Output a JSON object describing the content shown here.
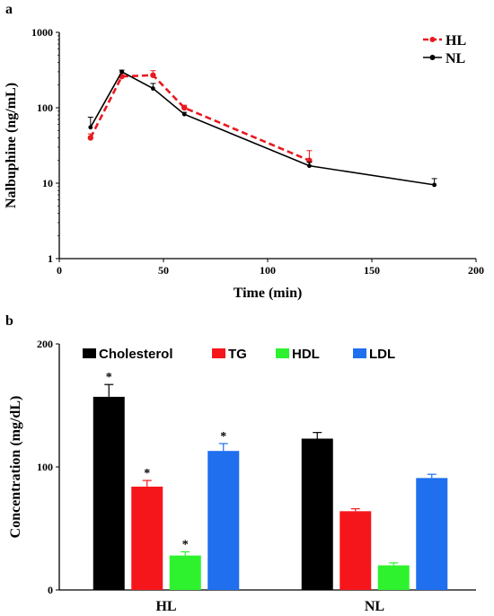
{
  "panel_a": {
    "label": "a",
    "chart_data": {
      "type": "line",
      "xlabel": "Time (min)",
      "ylabel": "Nalbuphine (ng/mL)",
      "xlim": [
        0,
        200
      ],
      "ylim": [
        1,
        1000
      ],
      "yscale": "log",
      "xticks": [
        "0",
        "50",
        "100",
        "150",
        "200"
      ],
      "yticks": [
        "1",
        "10",
        "100",
        "1000"
      ],
      "legend_position": "top-right",
      "series": [
        {
          "name": "HL",
          "color": "#e8191f",
          "line_style": "dashed",
          "x": [
            15,
            30,
            45,
            60,
            120
          ],
          "y": [
            40,
            260,
            270,
            100,
            20
          ],
          "err": [
            5,
            15,
            40,
            8,
            7
          ]
        },
        {
          "name": "NL",
          "color": "#000000",
          "line_style": "solid",
          "x": [
            15,
            30,
            45,
            60,
            120,
            180
          ],
          "y": [
            55,
            300,
            180,
            82,
            17,
            9.5
          ],
          "err": [
            20,
            15,
            30,
            5,
            2,
            2
          ]
        }
      ]
    }
  },
  "panel_b": {
    "label": "b",
    "chart_data": {
      "type": "bar",
      "xlabel": "",
      "ylabel": "Concentration (mg/dL)",
      "ylim": [
        0,
        200
      ],
      "yticks": [
        "0",
        "100",
        "200"
      ],
      "categories": [
        "HL",
        "NL"
      ],
      "legend_position": "top",
      "series": [
        {
          "name": "Cholesterol",
          "color": "#000000",
          "values": [
            157,
            123
          ],
          "err": [
            10,
            5
          ],
          "sig": [
            "*",
            ""
          ]
        },
        {
          "name": "TG",
          "color": "#f5161b",
          "values": [
            84,
            64
          ],
          "err": [
            5,
            2
          ],
          "sig": [
            "*",
            ""
          ]
        },
        {
          "name": "HDL",
          "color": "#2ef22e",
          "values": [
            28,
            20
          ],
          "err": [
            3,
            2
          ],
          "sig": [
            "*",
            ""
          ]
        },
        {
          "name": "LDL",
          "color": "#1f6fef",
          "values": [
            113,
            91
          ],
          "err": [
            6,
            3
          ],
          "sig": [
            "*",
            ""
          ]
        }
      ]
    }
  }
}
